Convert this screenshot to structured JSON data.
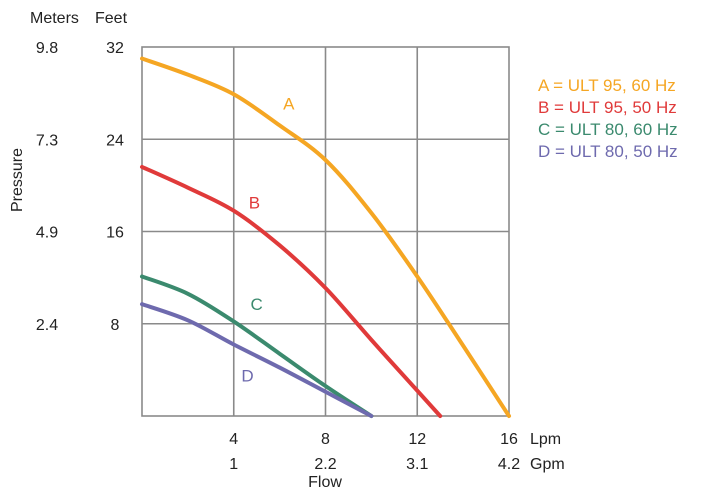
{
  "chart_data": {
    "type": "line",
    "xlabel": "Flow",
    "ylabel": "Pressure",
    "x_unit_primary": "Lpm",
    "x_unit_secondary": "Gpm",
    "y_unit_left": "Meters",
    "y_unit_right": "Feet",
    "xlim": [
      0,
      16
    ],
    "ylim": [
      0,
      32
    ],
    "x_ticks_primary": [
      "4",
      "8",
      "12",
      "16"
    ],
    "x_ticks_secondary": [
      "1",
      "2.2",
      "3.1",
      "4.2"
    ],
    "x_tick_values": [
      4,
      8,
      12,
      16
    ],
    "y_ticks_feet": [
      "8",
      "16",
      "24",
      "32"
    ],
    "y_ticks_meters": [
      "2.4",
      "4.9",
      "7.3",
      "9.8"
    ],
    "y_tick_values": [
      8,
      16,
      24,
      32
    ],
    "grid": true,
    "legend_position": "top-right",
    "series": [
      {
        "name": "A = ULT 95, 60 Hz",
        "label": "A",
        "color": "#f5a623",
        "points": [
          [
            0,
            31
          ],
          [
            2,
            29.6
          ],
          [
            4,
            27.9
          ],
          [
            6,
            25.2
          ],
          [
            8,
            22.2
          ],
          [
            10,
            17.6
          ],
          [
            12,
            12.1
          ],
          [
            14,
            6.1
          ],
          [
            16,
            0
          ]
        ]
      },
      {
        "name": "B = ULT 95, 50 Hz",
        "label": "B",
        "color": "#e03a3a",
        "points": [
          [
            0,
            21.6
          ],
          [
            2,
            19.8
          ],
          [
            4,
            17.8
          ],
          [
            6,
            14.8
          ],
          [
            8,
            11.1
          ],
          [
            10,
            6.6
          ],
          [
            12,
            2.2
          ],
          [
            13,
            0
          ]
        ]
      },
      {
        "name": "C = ULT 80, 60 Hz",
        "label": "C",
        "color": "#3b8a6e",
        "points": [
          [
            0,
            12.1
          ],
          [
            2,
            10.6
          ],
          [
            4,
            8.2
          ],
          [
            6,
            5.4
          ],
          [
            8,
            2.6
          ],
          [
            10,
            0
          ]
        ]
      },
      {
        "name": "D = ULT 80, 50 Hz",
        "label": "D",
        "color": "#6e6aae",
        "points": [
          [
            0,
            9.7
          ],
          [
            2,
            8.3
          ],
          [
            4,
            6.2
          ],
          [
            6,
            4.2
          ],
          [
            8,
            2.1
          ],
          [
            10,
            0
          ]
        ]
      }
    ],
    "curve_labels": [
      {
        "text": "A",
        "x": 6.4,
        "y": 26.6
      },
      {
        "text": "B",
        "x": 4.9,
        "y": 18.0
      },
      {
        "text": "C",
        "x": 5.0,
        "y": 9.2
      },
      {
        "text": "D",
        "x": 4.6,
        "y": 3.0
      }
    ]
  }
}
